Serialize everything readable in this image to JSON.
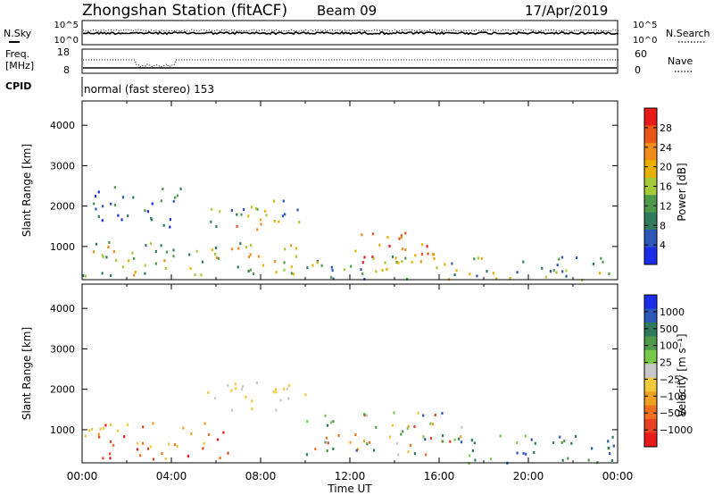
{
  "header": {
    "title": "Zhongshan Station (fitACF)",
    "beam": "Beam 09",
    "date": "17/Apr/2019"
  },
  "noise_panel": {
    "left_label": "N.Sky",
    "right_label": "N.Search",
    "ticks": [
      "10^5",
      "10^0"
    ]
  },
  "freq_panel": {
    "left_label_1": "Freq.",
    "left_label_2": "[MHz]",
    "left_ticks": [
      "18",
      "8"
    ],
    "right_label": "Nave",
    "right_ticks": [
      "60",
      "0"
    ]
  },
  "cpid_panel": {
    "label": "CPID",
    "value": "normal (fast stereo) 153"
  },
  "colors": {
    "power_scale": [
      "#1a2ee8",
      "#2d58b8",
      "#2f7a5e",
      "#4e9a4a",
      "#a6c93a",
      "#e8b000",
      "#f08c1a",
      "#e8561a",
      "#e81a1a"
    ],
    "velocity_scale": [
      "#1a2ee8",
      "#2d58b8",
      "#2f7a5e",
      "#4e9a4a",
      "#78c84a",
      "#c8c8c8",
      "#f0c83a",
      "#f0a020",
      "#f07020",
      "#e84020",
      "#e81a1a"
    ]
  },
  "chart_data": [
    {
      "type": "heatmap",
      "name": "power",
      "ylabel": "Slant Range [km]",
      "xlabel": "",
      "xlim": [
        "00:00",
        "24:00"
      ],
      "ylim": [
        180,
        4600
      ],
      "yticks": [
        "1000",
        "2000",
        "3000",
        "4000"
      ],
      "xticks": [],
      "colorbar_label": "Power [dB]",
      "colorbar_ticks": [
        "28",
        "24",
        "20",
        "16",
        "12",
        "8",
        "4"
      ],
      "colorbar_range": [
        0,
        32
      ],
      "regions": [
        {
          "t0": 0.0,
          "t1": 10.2,
          "r0": 300,
          "r1": 1200,
          "level": "mid"
        },
        {
          "t0": 0.4,
          "t1": 4.5,
          "r0": 1500,
          "r1": 2500,
          "level": "low"
        },
        {
          "t0": 5.5,
          "t1": 9.8,
          "r0": 1500,
          "r1": 2200,
          "level": "low-mid"
        },
        {
          "t0": 6.3,
          "t1": 8.8,
          "r0": 1450,
          "r1": 1700,
          "level": "mid-high"
        },
        {
          "t0": 12.2,
          "t1": 16.0,
          "r0": 400,
          "r1": 1400,
          "level": "high"
        },
        {
          "t0": 10.0,
          "t1": 24.0,
          "r0": 200,
          "r1": 800,
          "level": "low-mid"
        }
      ]
    },
    {
      "type": "heatmap",
      "name": "velocity",
      "ylabel": "Slant Range [km]",
      "xlabel": "Time UT",
      "xlim": [
        "00:00",
        "24:00"
      ],
      "ylim": [
        180,
        4600
      ],
      "yticks": [
        "1000",
        "2000",
        "3000",
        "4000"
      ],
      "xticks": [
        "00:00",
        "04:00",
        "08:00",
        "12:00",
        "16:00",
        "20:00",
        "00:00"
      ],
      "colorbar_label": "Velocity [m s⁻¹]",
      "colorbar_ticks": [
        "1000",
        "500",
        "100",
        "25",
        "−25",
        "−100",
        "−500",
        "−1000"
      ],
      "regions": [
        {
          "t0": 0.0,
          "t1": 6.5,
          "r0": 300,
          "r1": 1200,
          "level": "negative"
        },
        {
          "t0": 5.5,
          "t1": 10.0,
          "r0": 1500,
          "r1": 2200,
          "level": "near-zero"
        },
        {
          "t0": 10.0,
          "t1": 17.0,
          "r0": 400,
          "r1": 1500,
          "level": "mixed"
        },
        {
          "t0": 16.5,
          "t1": 24.0,
          "r0": 200,
          "r1": 900,
          "level": "positive"
        }
      ]
    }
  ]
}
